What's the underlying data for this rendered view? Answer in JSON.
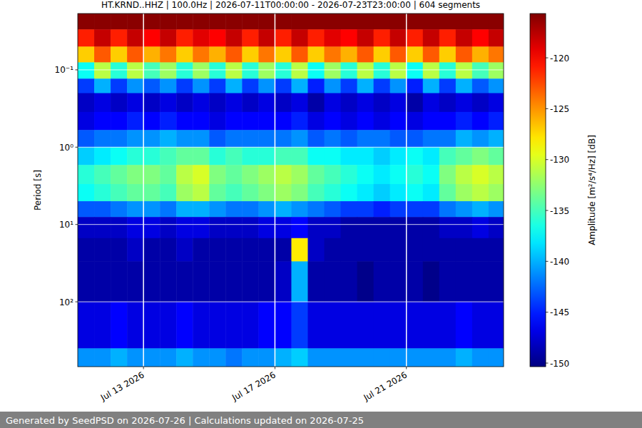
{
  "chart_data": {
    "type": "heatmap",
    "title": "HT.KRND..HHZ | 100.0Hz | 2026-07-11T00:00:00 - 2026-07-23T23:00:00 | 604 segments",
    "y_label": "Period [s]",
    "footer": "Generated by SeedPSD on 2026-07-26 | Calculations updated on 2026-07-25",
    "log": "y",
    "grid": true,
    "xlim": [
      "2026-07-11T00:00",
      "2026-07-23T23:00"
    ],
    "xticks": [
      {
        "value": "2026-07-13T00:00",
        "label": "Jul 13 2026"
      },
      {
        "value": "2026-07-17T00:00",
        "label": "Jul 17 2026"
      },
      {
        "value": "2026-07-21T00:00",
        "label": "Jul 21 2026"
      }
    ],
    "ylim": [
      690,
      0.0187
    ],
    "yticks": [
      {
        "value": 0.1,
        "label": "10⁻¹"
      },
      {
        "value": 1,
        "label": "10⁰"
      },
      {
        "value": 10,
        "label": "10¹"
      },
      {
        "value": 100,
        "label": "10²"
      }
    ],
    "x_edges": [
      "2026-07-11T00:00",
      "2026-07-11T12:00",
      "2026-07-12T00:00",
      "2026-07-12T12:00",
      "2026-07-13T00:00",
      "2026-07-13T12:00",
      "2026-07-14T00:00",
      "2026-07-14T12:00",
      "2026-07-15T00:00",
      "2026-07-15T12:00",
      "2026-07-16T00:00",
      "2026-07-16T12:00",
      "2026-07-17T00:00",
      "2026-07-17T12:00",
      "2026-07-18T00:00",
      "2026-07-18T12:00",
      "2026-07-19T00:00",
      "2026-07-19T12:00",
      "2026-07-20T00:00",
      "2026-07-20T12:00",
      "2026-07-21T00:00",
      "2026-07-21T12:00",
      "2026-07-22T00:00",
      "2026-07-22T12:00",
      "2026-07-23T00:00",
      "2026-07-23T12:00",
      "2026-07-24T00:00"
    ],
    "y_edges": [
      0.0187,
      0.03,
      0.05,
      0.08,
      0.13,
      0.2,
      0.35,
      0.6,
      1,
      1.7,
      3,
      5,
      8,
      15,
      30,
      100,
      400,
      690
    ],
    "z": [
      [
        -116,
        -116,
        -116,
        -116,
        -116,
        -116,
        -116,
        -116,
        -116,
        -116,
        -116,
        -116,
        -116,
        -116,
        -116,
        -116,
        -116,
        -116,
        -116,
        -116,
        -116,
        -116,
        -116,
        -116,
        -116,
        -116
      ],
      [
        -121,
        -118,
        -121,
        -118,
        -120,
        -118,
        -121,
        -119,
        -120,
        -118,
        -121,
        -118,
        -121,
        -118,
        -121,
        -119,
        -120,
        -118,
        -121,
        -118,
        -121,
        -118,
        -121,
        -118,
        -120,
        -118
      ],
      [
        -127,
        -123,
        -127,
        -123,
        -126,
        -124,
        -127,
        -124,
        -126,
        -123,
        -127,
        -124,
        -127,
        -123,
        -127,
        -124,
        -126,
        -123,
        -127,
        -123,
        -127,
        -123,
        -127,
        -123,
        -126,
        -124
      ],
      [
        -137,
        -131,
        -136,
        -131,
        -135,
        -132,
        -136,
        -132,
        -136,
        -131,
        -136,
        -132,
        -136,
        -131,
        -137,
        -132,
        -136,
        -131,
        -136,
        -131,
        -137,
        -131,
        -136,
        -131,
        -135,
        -132
      ],
      [
        -144,
        -140,
        -144,
        -141,
        -143,
        -141,
        -144,
        -141,
        -144,
        -140,
        -144,
        -141,
        -144,
        -140,
        -145,
        -141,
        -144,
        -140,
        -144,
        -141,
        -145,
        -140,
        -144,
        -140,
        -143,
        -141
      ],
      [
        -148,
        -147,
        -148,
        -147,
        -148,
        -147,
        -148,
        -147,
        -148,
        -147,
        -148,
        -147,
        -148,
        -147,
        -149,
        -147,
        -148,
        -147,
        -148,
        -147,
        -149,
        -147,
        -148,
        -147,
        -148,
        -147
      ],
      [
        -147,
        -146,
        -146,
        -145,
        -146,
        -145,
        -146,
        -146,
        -147,
        -146,
        -146,
        -146,
        -146,
        -145,
        -147,
        -146,
        -147,
        -146,
        -147,
        -146,
        -147,
        -146,
        -146,
        -145,
        -146,
        -145
      ],
      [
        -143,
        -142,
        -142,
        -141,
        -141,
        -140,
        -141,
        -141,
        -143,
        -142,
        -142,
        -142,
        -142,
        -141,
        -143,
        -142,
        -143,
        -142,
        -142,
        -143,
        -143,
        -142,
        -142,
        -140,
        -141,
        -140
      ],
      [
        -139,
        -138,
        -137,
        -136,
        -136,
        -135,
        -134,
        -134,
        -136,
        -135,
        -136,
        -136,
        -135,
        -135,
        -137,
        -137,
        -138,
        -138,
        -139,
        -138,
        -137,
        -138,
        -135,
        -134,
        -133,
        -134
      ],
      [
        -136,
        -135,
        -134,
        -133,
        -133,
        -134,
        -131,
        -130,
        -133,
        -134,
        -133,
        -132,
        -131,
        -132,
        -134,
        -135,
        -136,
        -137,
        -138,
        -137,
        -136,
        -137,
        -133,
        -131,
        -130,
        -131
      ],
      [
        -137,
        -136,
        -135,
        -134,
        -134,
        -135,
        -132,
        -131,
        -134,
        -135,
        -134,
        -133,
        -132,
        -133,
        -135,
        -136,
        -137,
        -138,
        -139,
        -138,
        -137,
        -138,
        -134,
        -132,
        -131,
        -132
      ],
      [
        -143,
        -143,
        -142,
        -141,
        -141,
        -142,
        -140,
        -140,
        -141,
        -142,
        -142,
        -141,
        -140,
        -141,
        -142,
        -143,
        -144,
        -144,
        -145,
        -144,
        -144,
        -144,
        -142,
        -141,
        -140,
        -141
      ],
      [
        -148,
        -148,
        -148,
        -147,
        -147,
        -148,
        -147,
        -147,
        -148,
        -148,
        -148,
        -147,
        -147,
        -146,
        -148,
        -148,
        -149,
        -149,
        -149,
        -149,
        -149,
        -149,
        -148,
        -148,
        -147,
        -148
      ],
      [
        -149,
        -149,
        -149,
        -148,
        -149,
        -149,
        -148,
        -149,
        -149,
        -149,
        -149,
        -149,
        -149,
        -128,
        -148,
        -149,
        -149,
        -149,
        -149,
        -149,
        -149,
        -149,
        -149,
        -149,
        -149,
        -149
      ],
      [
        -149,
        -149,
        -149,
        -149,
        -149,
        -149,
        -149,
        -149,
        -149,
        -149,
        -149,
        -149,
        -148,
        -140,
        -149,
        -149,
        -149,
        -150,
        -149,
        -149,
        -149,
        -150,
        -149,
        -149,
        -149,
        -149
      ],
      [
        -147,
        -147,
        -146,
        -147,
        -147,
        -147,
        -146,
        -147,
        -147,
        -147,
        -147,
        -146,
        -146,
        -144,
        -147,
        -147,
        -147,
        -147,
        -147,
        -147,
        -147,
        -147,
        -147,
        -146,
        -147,
        -147
      ],
      [
        -141,
        -141,
        -140,
        -141,
        -141,
        -141,
        -140,
        -141,
        -141,
        -142,
        -141,
        -141,
        -140,
        -139,
        -141,
        -141,
        -141,
        -141,
        -141,
        -141,
        -141,
        -141,
        -141,
        -140,
        -141,
        -141
      ]
    ],
    "colorbar": {
      "label": "Amplitude [m²/s⁴/Hz] [dB]",
      "range": [
        -150.35,
        -115.65
      ],
      "ticks": [
        -150,
        -145,
        -140,
        -135,
        -130,
        -125,
        -120
      ]
    }
  }
}
